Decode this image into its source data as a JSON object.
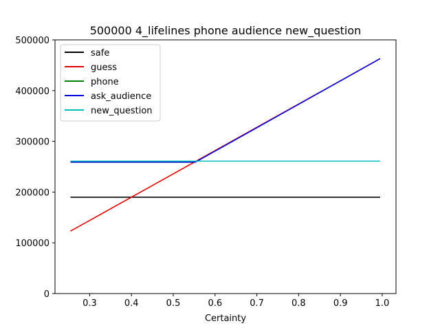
{
  "chart_data": {
    "type": "line",
    "title": "500000 4_lifelines phone audience new_question",
    "xlabel": "Certainty",
    "ylabel": "",
    "xlim": [
      0.217,
      1.033
    ],
    "ylim": [
      0,
      500000
    ],
    "xticks": [
      0.3,
      0.4,
      0.5,
      0.6,
      0.7,
      0.8,
      0.9,
      1.0
    ],
    "xtick_labels": [
      "0.3",
      "0.4",
      "0.5",
      "0.6",
      "0.7",
      "0.8",
      "0.9",
      "1.0"
    ],
    "yticks": [
      0,
      100000,
      200000,
      300000,
      400000,
      500000
    ],
    "ytick_labels": [
      "0",
      "100000",
      "200000",
      "300000",
      "400000",
      "500000"
    ],
    "grid": false,
    "legend_position": "top-left",
    "series": [
      {
        "name": "safe",
        "color": "#000000",
        "x": [
          0.254,
          0.995
        ],
        "y": [
          190000,
          190000
        ]
      },
      {
        "name": "guess",
        "color": "#dd0000",
        "x": [
          0.254,
          0.995
        ],
        "y": [
          123000,
          463000
        ]
      },
      {
        "name": "phone",
        "color": "#008000",
        "x": [
          0.254,
          0.55
        ],
        "y": [
          259000,
          259000
        ]
      },
      {
        "name": "ask_audience",
        "color": "#0000dd",
        "x": [
          0.254,
          0.553,
          0.995
        ],
        "y": [
          259000,
          259000,
          463000
        ]
      },
      {
        "name": "new_question",
        "color": "#00bfbf",
        "x": [
          0.254,
          0.995
        ],
        "y": [
          261000,
          261000
        ]
      }
    ]
  }
}
